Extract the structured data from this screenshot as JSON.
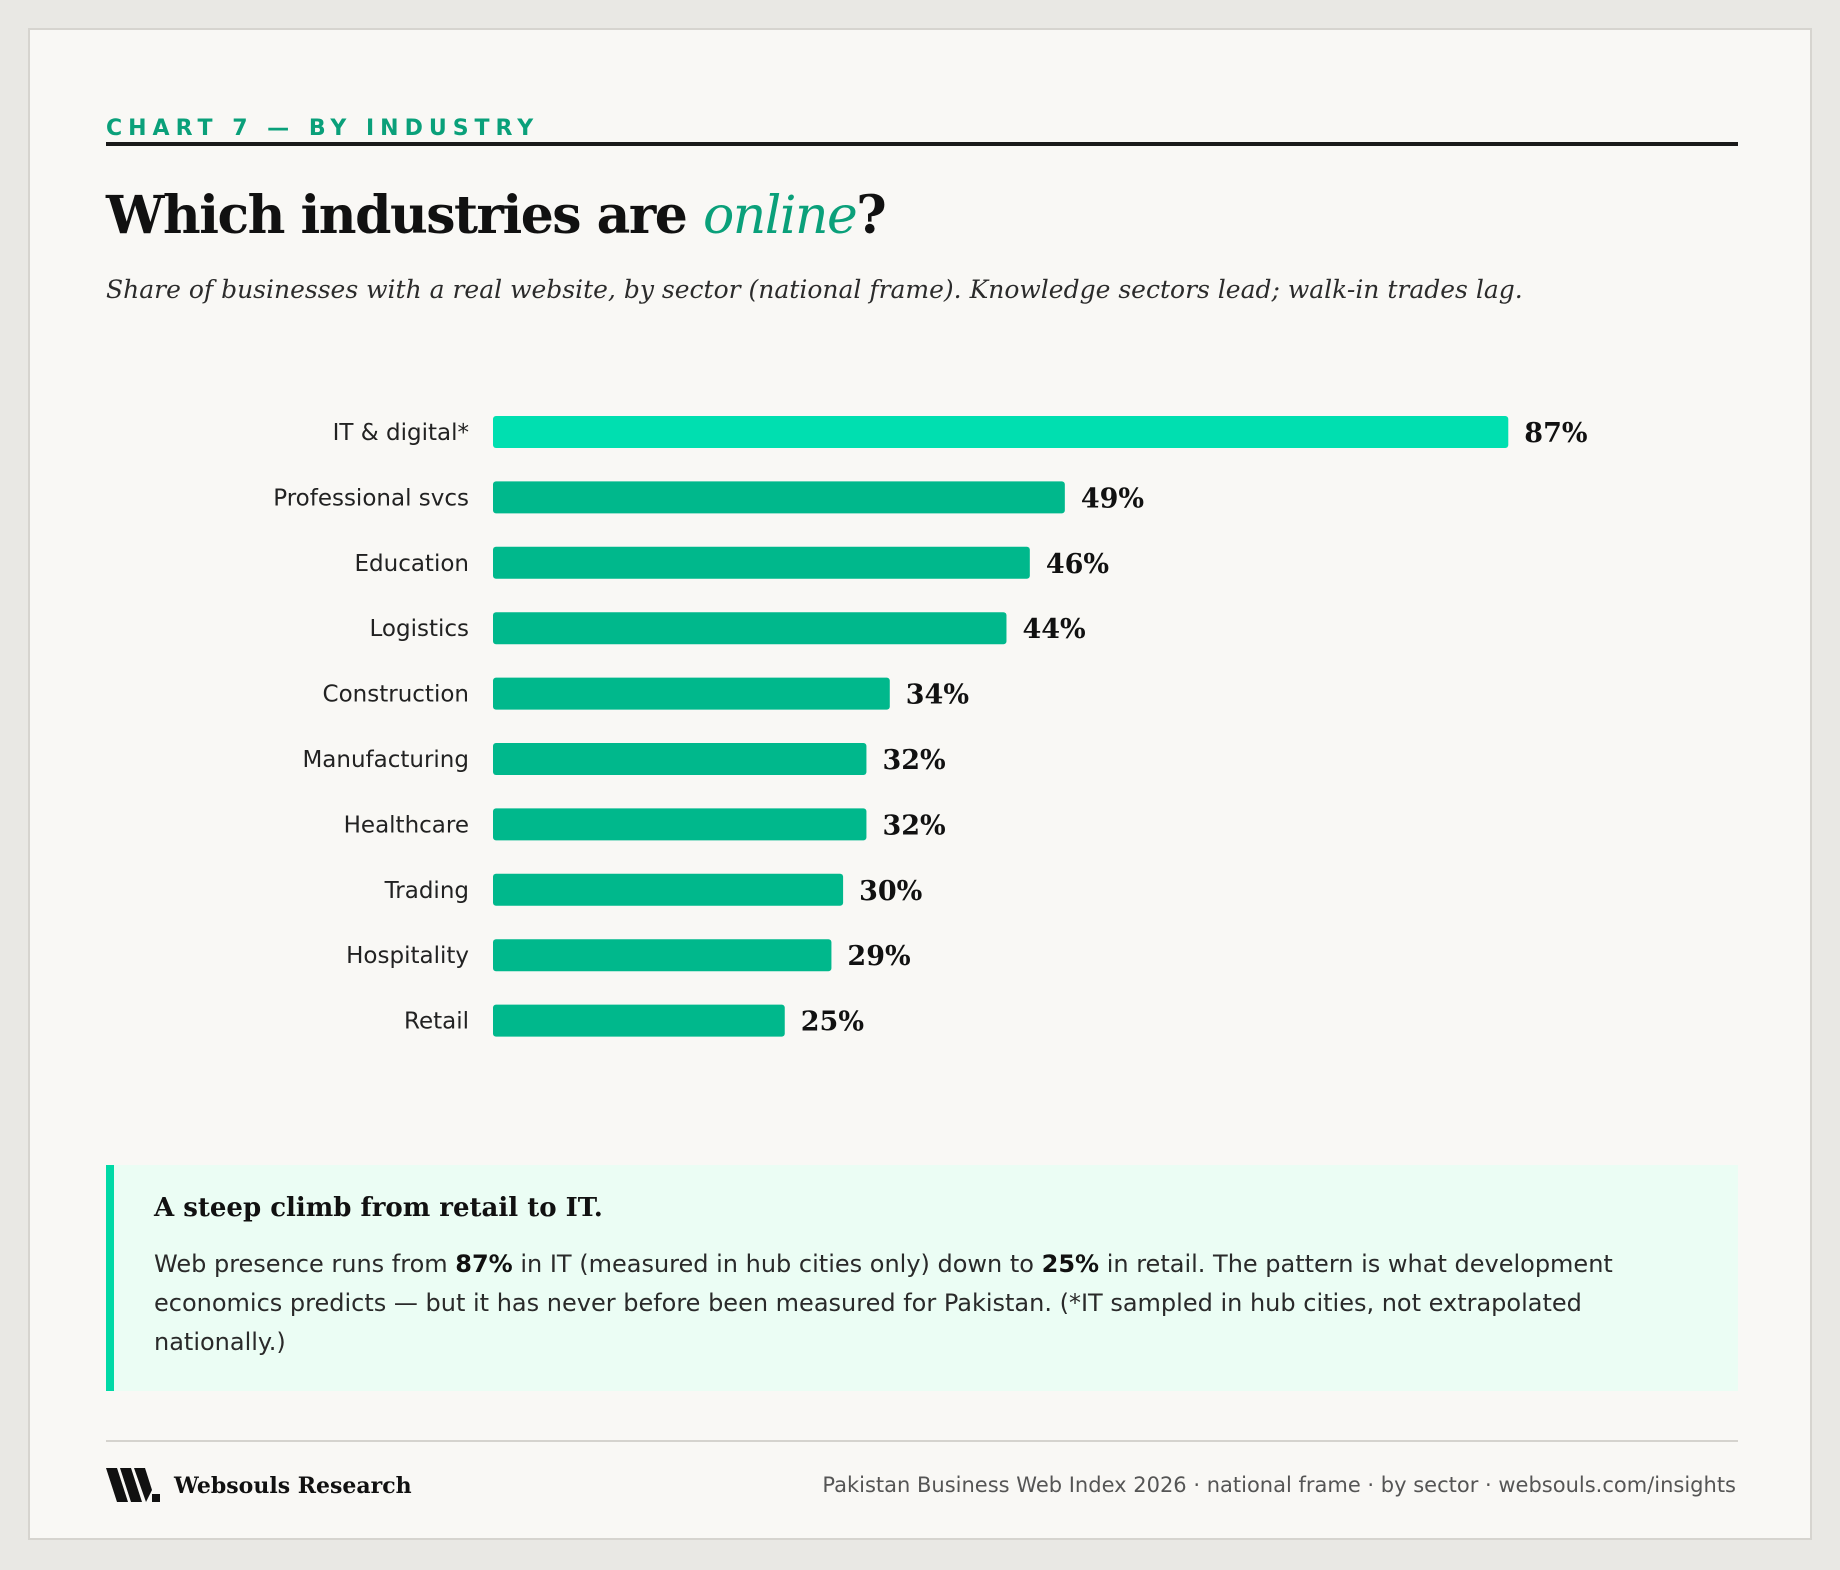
{
  "header": {
    "kicker": "CHART 7 — BY INDUSTRY",
    "title_prefix": "Which industries are ",
    "title_highlight": "online",
    "title_suffix": "?",
    "subtitle": "Share of businesses with a real website, by sector (national frame). Knowledge sectors lead; walk-in trades lag."
  },
  "chart_data": {
    "type": "bar",
    "orientation": "horizontal",
    "categories": [
      "IT & digital*",
      "Professional svcs",
      "Education",
      "Logistics",
      "Construction",
      "Manufacturing",
      "Healthcare",
      "Trading",
      "Hospitality",
      "Retail"
    ],
    "values": [
      87,
      49,
      46,
      44,
      34,
      32,
      32,
      30,
      29,
      25
    ],
    "value_labels": [
      "87%",
      "49%",
      "46%",
      "44%",
      "34%",
      "32%",
      "32%",
      "30%",
      "29%",
      "25%"
    ],
    "unit": "%",
    "xlim": [
      0,
      100
    ],
    "grid": false,
    "highlight_color": "#00dfb0",
    "bar_color": "#00b88c"
  },
  "callout": {
    "heading": "A steep climb from retail to IT.",
    "text_1": "Web presence runs from ",
    "value_high": "87%",
    "text_2": " in IT (measured in hub cities only) down to ",
    "value_low": "25%",
    "text_3": " in retail. The pattern is what development economics predicts — but it has never before been measured for Pakistan. (*IT sampled in hub cities, not extrapolated nationally.)"
  },
  "footer": {
    "brand": "Websouls Research",
    "logo_icon": "websouls-logo-icon",
    "meta": "Pakistan Business Web Index 2026 · national frame · by sector · websouls.com/insights"
  },
  "colors": {
    "accent": "#0aa07a",
    "callout_bg": "#ebfdf4",
    "callout_border": "#00d9a6"
  }
}
